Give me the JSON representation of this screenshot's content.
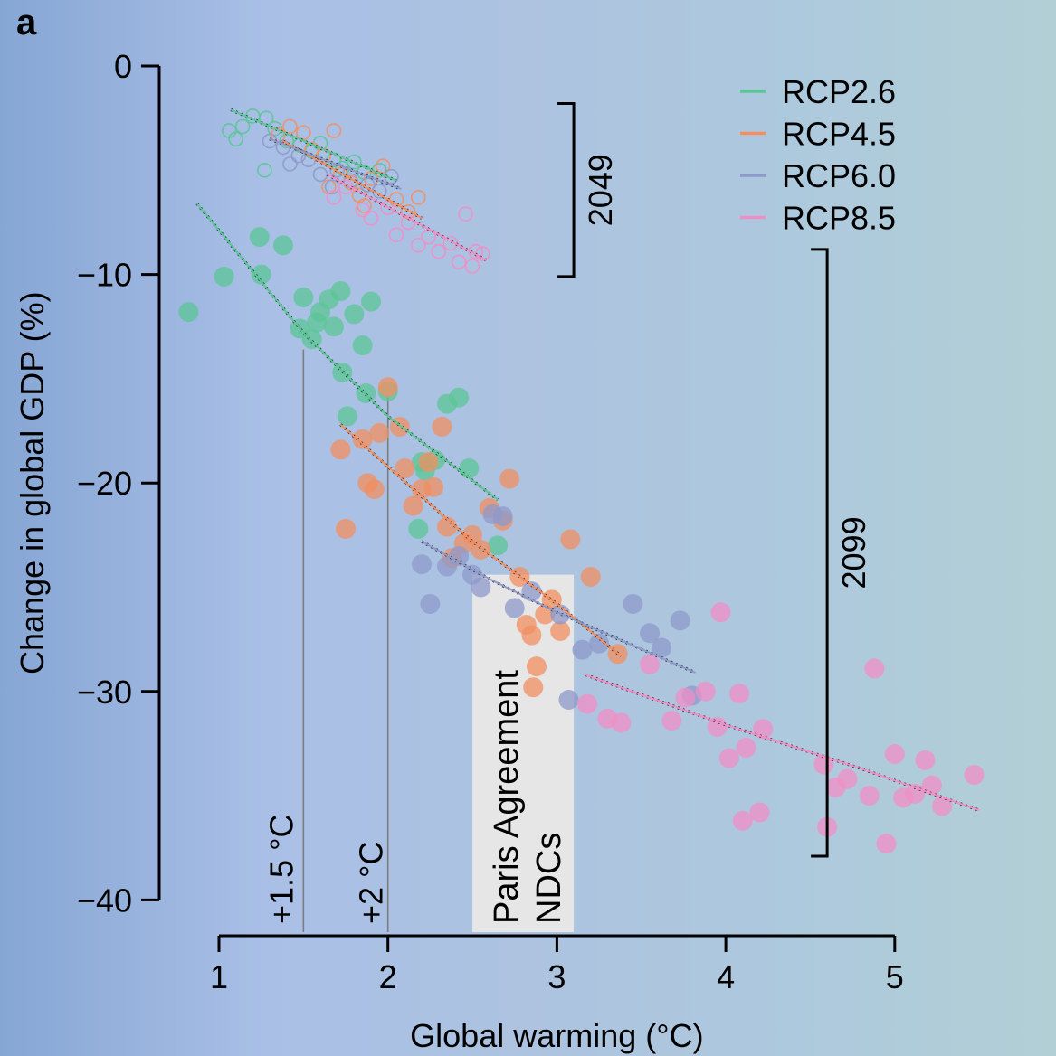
{
  "panel_label": "a",
  "chart_data": {
    "type": "scatter",
    "xlabel": "Global warming (°C)",
    "ylabel": "Change in global GDP (%)",
    "xlim": [
      1,
      5
    ],
    "ylim": [
      -40,
      0
    ],
    "x_ticks": [
      1,
      2,
      3,
      4,
      5
    ],
    "x_tick_labels": [
      "1",
      "2",
      "3",
      "4",
      "5"
    ],
    "y_ticks": [
      0,
      -10,
      -20,
      -30,
      -40
    ],
    "y_tick_labels": [
      "0",
      "−10",
      "−20",
      "−30",
      "−40"
    ],
    "grid": false,
    "legend_position": "top-right",
    "annotations": {
      "threshold_15": "+1.5 °C",
      "threshold_2": "+2 °C",
      "ndc_line1": "Paris Agreement",
      "ndc_line2": "NDCs",
      "bracket_2049": "2049",
      "bracket_2099": "2099"
    },
    "thresholds": [
      1.5,
      2.0
    ],
    "ndc_range": [
      2.5,
      3.1
    ],
    "brackets": [
      {
        "label": "2049",
        "y_range": [
          -1.8,
          -10.1
        ],
        "x": 3.1
      },
      {
        "label": "2099",
        "y_range": [
          -8.8,
          -37.9
        ],
        "x": 4.6
      }
    ],
    "series": [
      {
        "name": "RCP2.6",
        "color": "#5bc596",
        "fit_2049": [
          [
            1.07,
            -2.1
          ],
          [
            2.05,
            -5.5
          ]
        ],
        "fit_2099": [
          [
            0.87,
            -6.6
          ],
          [
            1.5,
            -12.8
          ],
          [
            2.0,
            -16.8
          ],
          [
            2.65,
            -20.8
          ]
        ],
        "points_2049": [
          [
            1.06,
            -3.1
          ],
          [
            1.14,
            -2.9
          ],
          [
            1.2,
            -2.4
          ],
          [
            1.28,
            -2.5
          ],
          [
            1.33,
            -3.0
          ],
          [
            1.4,
            -3.6
          ],
          [
            1.48,
            -3.8
          ],
          [
            1.55,
            -4.1
          ],
          [
            1.6,
            -3.7
          ],
          [
            1.68,
            -4.5
          ],
          [
            1.73,
            -4.9
          ],
          [
            1.8,
            -4.6
          ],
          [
            1.86,
            -5.1
          ],
          [
            1.95,
            -5.0
          ],
          [
            1.1,
            -3.5
          ],
          [
            1.27,
            -5.0
          ]
        ],
        "points_2099": [
          [
            0.82,
            -11.8
          ],
          [
            1.03,
            -10.1
          ],
          [
            1.24,
            -8.2
          ],
          [
            1.25,
            -10.0
          ],
          [
            1.38,
            -8.6
          ],
          [
            1.48,
            -12.6
          ],
          [
            1.5,
            -11.1
          ],
          [
            1.55,
            -13.1
          ],
          [
            1.58,
            -12.3
          ],
          [
            1.6,
            -11.8
          ],
          [
            1.65,
            -11.2
          ],
          [
            1.68,
            -12.5
          ],
          [
            1.72,
            -10.8
          ],
          [
            1.73,
            -14.7
          ],
          [
            1.76,
            -16.8
          ],
          [
            1.8,
            -11.9
          ],
          [
            1.85,
            -13.4
          ],
          [
            1.87,
            -15.7
          ],
          [
            1.9,
            -11.3
          ],
          [
            2.0,
            -15.6
          ],
          [
            2.18,
            -22.2
          ],
          [
            2.2,
            -19.0
          ],
          [
            2.22,
            -19.4
          ],
          [
            2.28,
            -18.9
          ],
          [
            2.35,
            -16.2
          ],
          [
            2.42,
            -15.9
          ],
          [
            2.48,
            -19.3
          ],
          [
            2.65,
            -23.0
          ]
        ]
      },
      {
        "name": "RCP4.5",
        "color": "#f28f60",
        "fit_2049": [
          [
            1.38,
            -3.6
          ],
          [
            2.2,
            -7.3
          ]
        ],
        "fit_2099": [
          [
            1.72,
            -17.2
          ],
          [
            2.5,
            -22.8
          ],
          [
            3.0,
            -25.8
          ],
          [
            3.38,
            -28.3
          ]
        ],
        "points_2049": [
          [
            1.35,
            -3.3
          ],
          [
            1.42,
            -2.9
          ],
          [
            1.5,
            -3.2
          ],
          [
            1.55,
            -4.0
          ],
          [
            1.62,
            -4.3
          ],
          [
            1.68,
            -3.1
          ],
          [
            1.72,
            -5.2
          ],
          [
            1.78,
            -5.6
          ],
          [
            1.83,
            -6.2
          ],
          [
            1.9,
            -5.4
          ],
          [
            1.97,
            -4.8
          ],
          [
            2.05,
            -6.4
          ],
          [
            2.12,
            -7.0
          ],
          [
            2.18,
            -6.3
          ],
          [
            1.65,
            -5.8
          ],
          [
            1.86,
            -6.7
          ]
        ],
        "points_2099": [
          [
            1.72,
            -18.4
          ],
          [
            1.75,
            -22.2
          ],
          [
            1.85,
            -17.9
          ],
          [
            1.88,
            -20.0
          ],
          [
            1.92,
            -20.3
          ],
          [
            1.95,
            -17.6
          ],
          [
            2.0,
            -15.4
          ],
          [
            2.07,
            -17.3
          ],
          [
            2.1,
            -19.3
          ],
          [
            2.15,
            -21.1
          ],
          [
            2.2,
            -20.3
          ],
          [
            2.24,
            -19.0
          ],
          [
            2.27,
            -20.2
          ],
          [
            2.32,
            -17.3
          ],
          [
            2.35,
            -22.1
          ],
          [
            2.38,
            -23.6
          ],
          [
            2.45,
            -22.9
          ],
          [
            2.5,
            -22.5
          ],
          [
            2.55,
            -23.2
          ],
          [
            2.6,
            -21.2
          ],
          [
            2.68,
            -21.8
          ],
          [
            2.72,
            -19.8
          ],
          [
            2.78,
            -24.5
          ],
          [
            2.82,
            -26.8
          ],
          [
            2.85,
            -27.3
          ],
          [
            2.88,
            -28.8
          ],
          [
            2.86,
            -29.8
          ],
          [
            2.93,
            -26.3
          ],
          [
            2.97,
            -25.6
          ],
          [
            3.02,
            -27.1
          ],
          [
            3.08,
            -22.7
          ],
          [
            3.2,
            -24.5
          ],
          [
            3.36,
            -28.2
          ]
        ]
      },
      {
        "name": "RCP6.0",
        "color": "#8e9ac9",
        "fit_2049": [
          [
            1.3,
            -3.5
          ],
          [
            2.08,
            -5.9
          ]
        ],
        "fit_2099": [
          [
            2.2,
            -22.8
          ],
          [
            2.6,
            -24.6
          ],
          [
            3.0,
            -26.2
          ],
          [
            3.82,
            -29.1
          ]
        ],
        "points_2049": [
          [
            1.3,
            -3.6
          ],
          [
            1.38,
            -3.9
          ],
          [
            1.47,
            -4.3
          ],
          [
            1.53,
            -4.5
          ],
          [
            1.6,
            -5.2
          ],
          [
            1.7,
            -5.0
          ],
          [
            1.78,
            -5.5
          ],
          [
            1.88,
            -5.7
          ],
          [
            1.95,
            -6.0
          ],
          [
            2.02,
            -5.3
          ],
          [
            1.42,
            -4.7
          ],
          [
            1.67,
            -5.8
          ]
        ],
        "points_2099": [
          [
            2.2,
            -23.9
          ],
          [
            2.25,
            -25.8
          ],
          [
            2.35,
            -24.0
          ],
          [
            2.42,
            -23.5
          ],
          [
            2.5,
            -24.4
          ],
          [
            2.55,
            -25.0
          ],
          [
            2.62,
            -21.5
          ],
          [
            2.68,
            -21.6
          ],
          [
            2.75,
            -26.0
          ],
          [
            2.85,
            -25.2
          ],
          [
            3.02,
            -26.3
          ],
          [
            3.07,
            -30.4
          ],
          [
            3.15,
            -28.0
          ],
          [
            3.25,
            -27.7
          ],
          [
            3.45,
            -25.8
          ],
          [
            3.55,
            -27.2
          ],
          [
            3.62,
            -27.9
          ],
          [
            3.73,
            -26.6
          ],
          [
            3.8,
            -30.2
          ]
        ]
      },
      {
        "name": "RCP8.5",
        "color": "#f18ec6",
        "fit_2049": [
          [
            1.64,
            -5.2
          ],
          [
            2.58,
            -9.3
          ]
        ],
        "fit_2099": [
          [
            3.17,
            -29.2
          ],
          [
            4.0,
            -31.6
          ],
          [
            4.8,
            -33.7
          ],
          [
            5.5,
            -35.7
          ]
        ],
        "points_2049": [
          [
            1.68,
            -6.3
          ],
          [
            1.75,
            -5.8
          ],
          [
            1.85,
            -6.9
          ],
          [
            1.9,
            -7.3
          ],
          [
            2.0,
            -6.8
          ],
          [
            2.05,
            -8.1
          ],
          [
            2.12,
            -7.5
          ],
          [
            2.18,
            -8.6
          ],
          [
            2.24,
            -8.2
          ],
          [
            2.3,
            -8.9
          ],
          [
            2.37,
            -8.5
          ],
          [
            2.42,
            -9.4
          ],
          [
            2.46,
            -7.1
          ],
          [
            2.5,
            -9.6
          ],
          [
            2.52,
            -8.9
          ],
          [
            2.56,
            -9.0
          ]
        ],
        "points_2099": [
          [
            3.18,
            -30.6
          ],
          [
            3.3,
            -31.3
          ],
          [
            3.38,
            -31.5
          ],
          [
            3.55,
            -28.7
          ],
          [
            3.68,
            -31.4
          ],
          [
            3.76,
            -30.3
          ],
          [
            3.88,
            -30.0
          ],
          [
            3.95,
            -31.7
          ],
          [
            3.97,
            -26.2
          ],
          [
            4.02,
            -33.2
          ],
          [
            4.08,
            -30.1
          ],
          [
            4.1,
            -36.2
          ],
          [
            4.12,
            -32.7
          ],
          [
            4.2,
            -35.8
          ],
          [
            4.22,
            -31.8
          ],
          [
            4.58,
            -33.5
          ],
          [
            4.6,
            -36.5
          ],
          [
            4.65,
            -34.6
          ],
          [
            4.72,
            -34.2
          ],
          [
            4.85,
            -35.0
          ],
          [
            4.88,
            -28.9
          ],
          [
            4.95,
            -37.3
          ],
          [
            5.0,
            -33.0
          ],
          [
            5.05,
            -35.1
          ],
          [
            5.12,
            -34.9
          ],
          [
            5.18,
            -33.3
          ],
          [
            5.22,
            -34.5
          ],
          [
            5.28,
            -35.5
          ],
          [
            5.47,
            -34.0
          ]
        ]
      }
    ]
  }
}
